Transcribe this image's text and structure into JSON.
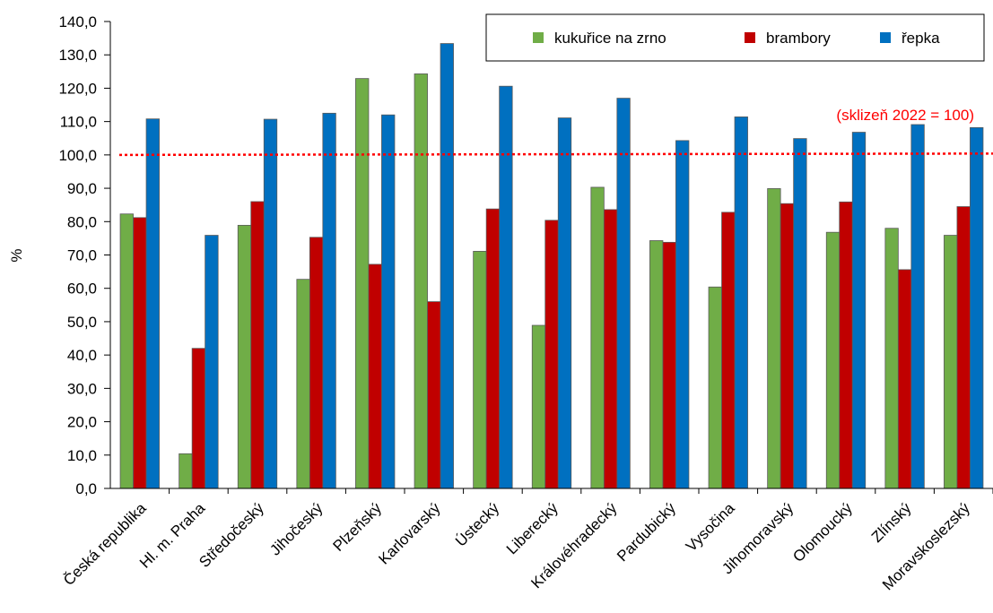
{
  "chart_data": {
    "type": "bar",
    "title": "",
    "xlabel": "",
    "ylabel": "%",
    "ylim": [
      0,
      140
    ],
    "yticks": [
      "0,0",
      "10,0",
      "20,0",
      "30,0",
      "40,0",
      "50,0",
      "60,0",
      "70,0",
      "80,0",
      "90,0",
      "100,0",
      "110,0",
      "120,0",
      "130,0",
      "140,0"
    ],
    "categories": [
      "Česká republika",
      "Hl. m. Praha",
      "Středočeský",
      "Jihočeský",
      "Plzeňský",
      "Karlovarský",
      "Ústecký",
      "Liberecký",
      "Královéhradecký",
      "Pardubický",
      "Vysočina",
      "Jihomoravský",
      "Olomoucký",
      "Zlínský",
      "Moravskoslezský"
    ],
    "series": [
      {
        "name": "kukuřice na zrno",
        "color": "#70ad47",
        "values": [
          82.3,
          10.4,
          78.9,
          62.7,
          122.9,
          124.3,
          71.1,
          48.9,
          90.3,
          74.3,
          60.4,
          89.9,
          76.8,
          78.0,
          75.9
        ]
      },
      {
        "name": "brambory",
        "color": "#c00000",
        "values": [
          81.2,
          42.0,
          86.0,
          75.3,
          67.2,
          56.0,
          83.8,
          80.4,
          83.6,
          73.8,
          82.8,
          85.4,
          85.9,
          65.6,
          84.5
        ]
      },
      {
        "name": "řepka",
        "color": "#0070c0",
        "values": [
          110.8,
          75.9,
          110.7,
          112.5,
          112.0,
          133.4,
          120.6,
          111.1,
          117.0,
          104.3,
          111.4,
          104.9,
          106.8,
          109.1,
          108.2
        ]
      }
    ],
    "reference_line": {
      "value": 100,
      "label": "(sklizeň 2022 = 100)",
      "color": "#ff0000"
    },
    "legend": "top-right",
    "grid": false
  }
}
